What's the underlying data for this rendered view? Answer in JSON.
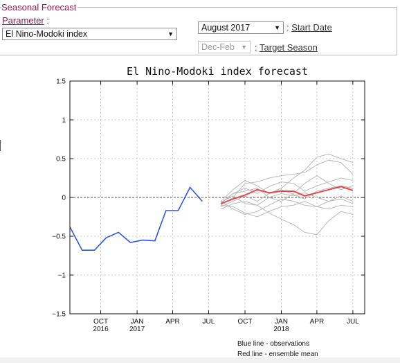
{
  "panel": {
    "legend": "Seasonal Forecast",
    "parameter_label": "Parameter",
    "parameter_colon": ":",
    "parameter_value": "El Nino-Modoki index",
    "start_date_value": "August 2017",
    "start_date_label": "Start Date",
    "target_season_value": "Dec-Feb",
    "target_season_label": "Target Season",
    "colon": ":"
  },
  "chart_data": {
    "type": "line",
    "title": "El Nino-Modoki index forecast",
    "ylim": [
      -1.5,
      1.5
    ],
    "yticks": [
      "1.5",
      "1",
      "0.5",
      "0",
      "−0.5",
      "−1",
      "−1.5"
    ],
    "ytick_values": [
      1.5,
      1,
      0.5,
      0,
      -0.5,
      -1,
      -1.5
    ],
    "xlim": [
      "2016-07-15",
      "2018-07-31"
    ],
    "xticks": [
      {
        "date": "2016-10-01",
        "line1": "OCT",
        "line2": "2016"
      },
      {
        "date": "2017-01-01",
        "line1": "JAN",
        "line2": "2017"
      },
      {
        "date": "2017-04-01",
        "line1": "APR",
        "line2": ""
      },
      {
        "date": "2017-07-01",
        "line1": "JUL",
        "line2": ""
      },
      {
        "date": "2017-10-01",
        "line1": "OCT",
        "line2": ""
      },
      {
        "date": "2018-01-01",
        "line1": "JAN",
        "line2": "2018"
      },
      {
        "date": "2018-04-01",
        "line1": "APR",
        "line2": ""
      },
      {
        "date": "2018-07-01",
        "line1": "JUL",
        "line2": ""
      }
    ],
    "grid": true,
    "zero_line": true,
    "colors": {
      "observations": "#2f55e0",
      "ensemble_mean": "#e8474a",
      "members": "#b9b9b9",
      "zero": "#555555"
    },
    "observations": {
      "x": [
        "2016-07-15",
        "2016-08-15",
        "2016-09-15",
        "2016-10-15",
        "2016-11-15",
        "2016-12-15",
        "2017-01-15",
        "2017-02-15",
        "2017-03-15",
        "2017-04-15",
        "2017-05-15",
        "2017-06-15",
        "2017-07-15"
      ],
      "y": [
        -0.38,
        -0.68,
        -0.68,
        -0.52,
        -0.45,
        -0.58,
        -0.55,
        -0.56,
        -0.17,
        -0.17,
        0.13,
        -0.05,
        null
      ]
    },
    "ensemble_mean": {
      "x": [
        "2017-08-01",
        "2017-09-01",
        "2017-10-01",
        "2017-11-01",
        "2017-12-01",
        "2018-01-01",
        "2018-02-01",
        "2018-03-01",
        "2018-04-01",
        "2018-05-01",
        "2018-06-01",
        "2018-07-01"
      ],
      "y": [
        -0.08,
        -0.02,
        0.03,
        0.1,
        0.06,
        0.08,
        0.08,
        0.02,
        0.06,
        0.1,
        0.14,
        0.09
      ]
    },
    "members": [
      {
        "x": [
          "2017-08-01",
          "2017-09-01",
          "2017-10-01",
          "2017-11-01",
          "2017-12-01",
          "2018-01-01",
          "2018-02-01",
          "2018-03-01",
          "2018-04-01",
          "2018-05-01",
          "2018-06-01",
          "2018-07-01"
        ],
        "y": [
          -0.05,
          0.1,
          0.22,
          0.15,
          0.05,
          0.12,
          0.25,
          0.35,
          0.52,
          0.56,
          0.5,
          0.45
        ]
      },
      {
        "x": [
          "2017-08-01",
          "2017-09-01",
          "2017-10-01",
          "2017-11-01",
          "2017-12-01",
          "2018-01-01",
          "2018-02-01",
          "2018-03-01",
          "2018-04-01",
          "2018-05-01",
          "2018-06-01",
          "2018-07-01"
        ],
        "y": [
          -0.1,
          0.0,
          0.18,
          0.2,
          0.25,
          0.28,
          0.3,
          0.32,
          0.42,
          0.48,
          0.45,
          0.3
        ]
      },
      {
        "x": [
          "2017-08-01",
          "2017-09-01",
          "2017-10-01",
          "2017-11-01",
          "2017-12-01",
          "2018-01-01",
          "2018-02-01",
          "2018-03-01",
          "2018-04-01",
          "2018-05-01",
          "2018-06-01",
          "2018-07-01"
        ],
        "y": [
          -0.08,
          0.05,
          0.12,
          0.05,
          0.14,
          0.2,
          0.18,
          0.08,
          0.15,
          0.2,
          0.25,
          0.22
        ]
      },
      {
        "x": [
          "2017-08-01",
          "2017-09-01",
          "2017-10-01",
          "2017-11-01",
          "2017-12-01",
          "2018-01-01",
          "2018-02-01",
          "2018-03-01",
          "2018-04-01",
          "2018-05-01",
          "2018-06-01",
          "2018-07-01"
        ],
        "y": [
          -0.12,
          -0.05,
          0.02,
          -0.05,
          0.05,
          0.1,
          0.04,
          -0.02,
          0.08,
          0.12,
          0.15,
          0.12
        ]
      },
      {
        "x": [
          "2017-08-01",
          "2017-09-01",
          "2017-10-01",
          "2017-11-01",
          "2017-12-01",
          "2018-01-01",
          "2018-02-01",
          "2018-03-01",
          "2018-04-01",
          "2018-05-01",
          "2018-06-01",
          "2018-07-01"
        ],
        "y": [
          -0.06,
          0.02,
          -0.08,
          -0.1,
          0.0,
          0.05,
          0.02,
          0.06,
          0.0,
          -0.05,
          0.02,
          -0.05
        ]
      },
      {
        "x": [
          "2017-08-01",
          "2017-09-01",
          "2017-10-01",
          "2017-11-01",
          "2017-12-01",
          "2018-01-01",
          "2018-02-01",
          "2018-03-01",
          "2018-04-01",
          "2018-05-01",
          "2018-06-01",
          "2018-07-01"
        ],
        "y": [
          -0.1,
          -0.12,
          -0.2,
          -0.25,
          -0.18,
          -0.12,
          -0.1,
          -0.05,
          -0.12,
          -0.05,
          -0.02,
          -0.08
        ]
      },
      {
        "x": [
          "2017-08-01",
          "2017-09-01",
          "2017-10-01",
          "2017-11-01",
          "2017-12-01",
          "2018-01-01",
          "2018-02-01",
          "2018-03-01",
          "2018-04-01",
          "2018-05-01",
          "2018-06-01",
          "2018-07-01"
        ],
        "y": [
          -0.15,
          -0.08,
          -0.05,
          -0.1,
          -0.2,
          -0.28,
          -0.35,
          -0.45,
          -0.48,
          -0.3,
          -0.18,
          -0.22
        ]
      },
      {
        "x": [
          "2017-08-01",
          "2017-09-01",
          "2017-10-01",
          "2017-11-01",
          "2017-12-01",
          "2018-01-01",
          "2018-02-01",
          "2018-03-01",
          "2018-04-01",
          "2018-05-01",
          "2018-06-01",
          "2018-07-01"
        ],
        "y": [
          -0.05,
          -0.15,
          -0.22,
          -0.18,
          -0.1,
          -0.02,
          -0.05,
          -0.1,
          -0.12,
          -0.15,
          -0.1,
          -0.12
        ]
      },
      {
        "x": [
          "2017-08-01",
          "2017-09-01",
          "2017-10-01",
          "2017-11-01",
          "2017-12-01",
          "2018-01-01",
          "2018-02-01",
          "2018-03-01",
          "2018-04-01",
          "2018-05-01",
          "2018-06-01",
          "2018-07-01"
        ],
        "y": [
          -0.07,
          0.05,
          0.08,
          0.12,
          0.0,
          -0.05,
          0.05,
          0.18,
          0.28,
          0.18,
          0.1,
          0.15
        ]
      }
    ],
    "legend_lines": [
      "Blue line - observations",
      "Red line - ensemble mean"
    ]
  }
}
